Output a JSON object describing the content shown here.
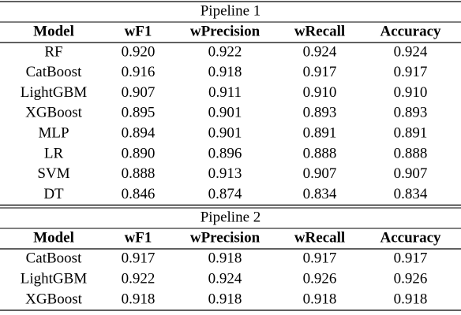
{
  "pipelines": [
    {
      "title": "Pipeline 1",
      "header": [
        "Model",
        "wF1",
        "wPrecision",
        "wRecall",
        "Accuracy"
      ],
      "rows": [
        [
          "RF",
          "0.920",
          "0.922",
          "0.924",
          "0.924"
        ],
        [
          "CatBoost",
          "0.916",
          "0.918",
          "0.917",
          "0.917"
        ],
        [
          "LightGBM",
          "0.907",
          "0.911",
          "0.910",
          "0.910"
        ],
        [
          "XGBoost",
          "0.895",
          "0.901",
          "0.893",
          "0.893"
        ],
        [
          "MLP",
          "0.894",
          "0.901",
          "0.891",
          "0.891"
        ],
        [
          "LR",
          "0.890",
          "0.896",
          "0.888",
          "0.888"
        ],
        [
          "SVM",
          "0.888",
          "0.913",
          "0.907",
          "0.907"
        ],
        [
          "DT",
          "0.846",
          "0.874",
          "0.834",
          "0.834"
        ]
      ]
    },
    {
      "title": "Pipeline 2",
      "header": [
        "Model",
        "wF1",
        "wPrecision",
        "wRecall",
        "Accuracy"
      ],
      "rows": [
        [
          "CatBoost",
          "0.917",
          "0.918",
          "0.917",
          "0.917"
        ],
        [
          "LightGBM",
          "0.922",
          "0.924",
          "0.926",
          "0.926"
        ],
        [
          "XGBoost",
          "0.918",
          "0.918",
          "0.918",
          "0.918"
        ]
      ]
    }
  ]
}
